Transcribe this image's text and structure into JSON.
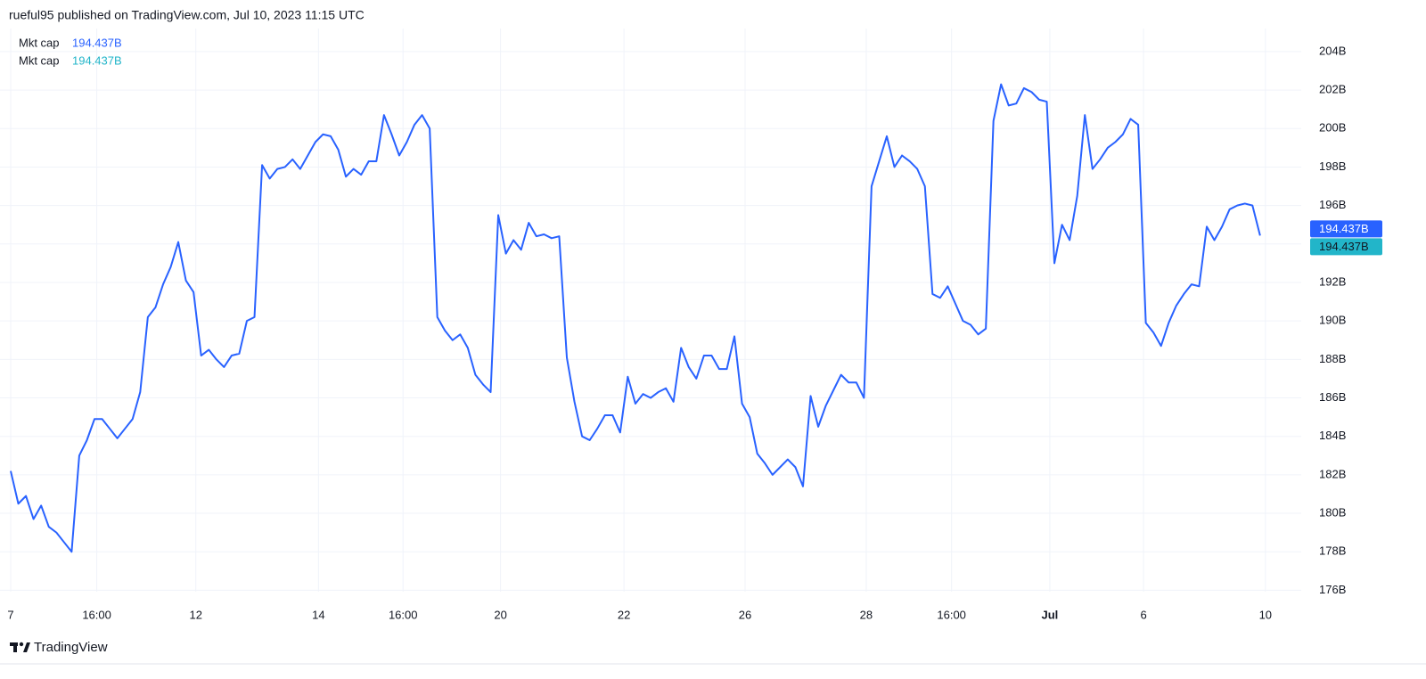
{
  "header": "rueful95 published on TradingView.com, Jul 10, 2023 11:15 UTC",
  "footer": "TradingView",
  "chart_data": {
    "type": "line",
    "series": [
      {
        "name": "Mkt cap",
        "color": "#2962ff",
        "last_value": 194.437,
        "last_label": "194.437B",
        "values": [
          182.2,
          180.5,
          180.9,
          179.7,
          180.4,
          179.3,
          179.0,
          178.5,
          178.0,
          183.0,
          183.8,
          184.9,
          184.9,
          184.4,
          183.9,
          184.4,
          184.9,
          186.3,
          190.2,
          190.7,
          191.9,
          192.8,
          194.1,
          192.1,
          191.5,
          188.2,
          188.5,
          188.0,
          187.6,
          188.2,
          188.3,
          190.0,
          190.2,
          198.1,
          197.4,
          197.9,
          198.0,
          198.4,
          197.9,
          198.6,
          199.3,
          199.7,
          199.6,
          198.9,
          197.5,
          197.9,
          197.6,
          198.3,
          198.3,
          200.7,
          199.7,
          198.6,
          199.3,
          200.2,
          200.7,
          200.0,
          190.2,
          189.5,
          189.0,
          189.3,
          188.6,
          187.2,
          186.7,
          186.3,
          195.5,
          193.5,
          194.2,
          193.7,
          195.1,
          194.4,
          194.5,
          194.3,
          194.4,
          188.1,
          185.8,
          184.0,
          183.8,
          184.4,
          185.1,
          185.1,
          184.2,
          187.1,
          185.7,
          186.2,
          186.0,
          186.3,
          186.5,
          185.8,
          188.6,
          187.6,
          187.0,
          188.2,
          188.2,
          187.5,
          187.5,
          189.2,
          185.7,
          185.0,
          183.1,
          182.6,
          182.0,
          182.4,
          182.8,
          182.4,
          181.4,
          186.1,
          184.5,
          185.6,
          186.4,
          187.2,
          186.8,
          186.8,
          186.0,
          197.0,
          198.3,
          199.6,
          198.0,
          198.6,
          198.3,
          197.9,
          197.0,
          191.4,
          191.2,
          191.8,
          190.9,
          190.0,
          189.8,
          189.3,
          189.6,
          200.4,
          202.3,
          201.2,
          201.3,
          202.1,
          201.9,
          201.5,
          201.4,
          193.0,
          195.0,
          194.2,
          196.5,
          200.7,
          197.9,
          198.4,
          199.0,
          199.3,
          199.7,
          200.5,
          200.2,
          189.9,
          189.4,
          188.7,
          189.9,
          190.8,
          191.4,
          191.9,
          191.8,
          194.9,
          194.2,
          194.9,
          195.8,
          196.0,
          196.1,
          196.0,
          194.437
        ]
      },
      {
        "name": "Mkt cap",
        "color": "#22b5c9",
        "last_value": 194.437,
        "last_label": "194.437B"
      }
    ],
    "xlim": [
      0,
      169.4
    ],
    "xticks": [
      {
        "value": 0,
        "label": "7"
      },
      {
        "value": 11.3,
        "label": "16:00"
      },
      {
        "value": 24.3,
        "label": "12"
      },
      {
        "value": 40.4,
        "label": "14"
      },
      {
        "value": 51.5,
        "label": "16:00"
      },
      {
        "value": 64.3,
        "label": "20"
      },
      {
        "value": 80.5,
        "label": "22"
      },
      {
        "value": 96.4,
        "label": "26"
      },
      {
        "value": 112.3,
        "label": "28"
      },
      {
        "value": 123.5,
        "label": "16:00"
      },
      {
        "value": 136.4,
        "label": "Jul",
        "bold": true
      },
      {
        "value": 148.7,
        "label": "6"
      },
      {
        "value": 164.7,
        "label": "10"
      }
    ],
    "ylim": [
      175,
      205.2
    ],
    "yticks": [
      {
        "value": 176,
        "label": "176B"
      },
      {
        "value": 178,
        "label": "178B"
      },
      {
        "value": 180,
        "label": "180B"
      },
      {
        "value": 182,
        "label": "182B"
      },
      {
        "value": 184,
        "label": "184B"
      },
      {
        "value": 186,
        "label": "186B"
      },
      {
        "value": 188,
        "label": "188B"
      },
      {
        "value": 190,
        "label": "190B"
      },
      {
        "value": 192,
        "label": "192B"
      },
      {
        "value": 194,
        "label": "194B"
      },
      {
        "value": 196,
        "label": "196B"
      },
      {
        "value": 198,
        "label": "198B"
      },
      {
        "value": 200,
        "label": "200B"
      },
      {
        "value": 202,
        "label": "202B"
      },
      {
        "value": 204,
        "label": "204B"
      }
    ],
    "grid": true
  }
}
